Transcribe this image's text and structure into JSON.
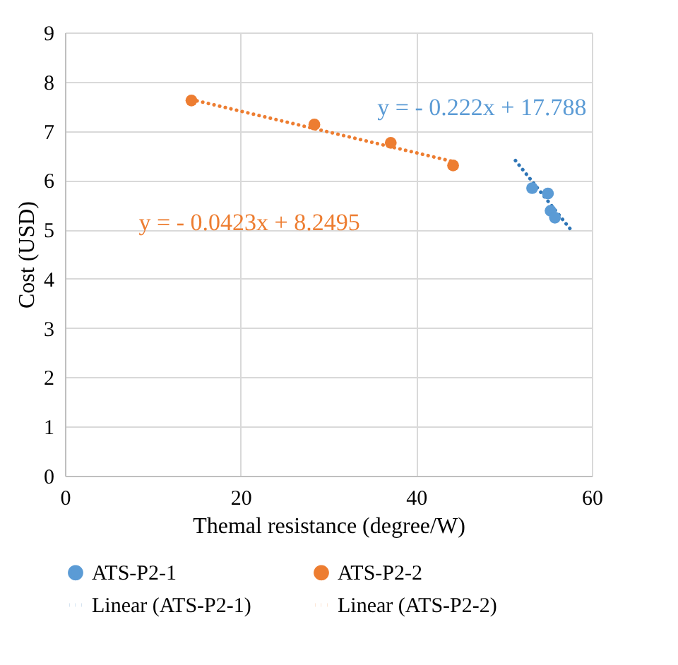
{
  "chart_data": {
    "type": "scatter",
    "xlabel": "Themal resistance (degree/W)",
    "ylabel": "Cost (USD)",
    "xlim": [
      0,
      60
    ],
    "xticks": [
      0,
      20,
      40,
      60
    ],
    "ylim": [
      0,
      9
    ],
    "yticks": [
      0,
      1,
      2,
      3,
      4,
      5,
      6,
      7,
      8,
      9
    ],
    "grid": true,
    "legend": "bottom",
    "marker": "circle",
    "series": [
      {
        "name": "ATS-P2-1",
        "color": "#5b9bd5",
        "x": [
          53.2,
          55.0,
          55.3,
          55.8
        ],
        "values": [
          5.84,
          5.73,
          5.38,
          5.24
        ]
      },
      {
        "name": "ATS-P2-2",
        "color": "#ed7d31",
        "x": [
          14.4,
          28.4,
          37.1,
          44.2
        ],
        "values": [
          7.62,
          7.13,
          6.76,
          6.3
        ]
      },
      {
        "name": "Linear (ATS-P2-1)",
        "type": "line",
        "line_style": "dotted",
        "marker": "none",
        "color": "#2e75b6",
        "x": [
          51.3,
          57.5
        ],
        "values": [
          6.4,
          5.02
        ]
      },
      {
        "name": "Linear (ATS-P2-2)",
        "type": "line",
        "line_style": "dotted",
        "marker": "none",
        "color": "#ed7d31",
        "x": [
          14.4,
          44.2
        ],
        "values": [
          7.64,
          6.38
        ]
      }
    ],
    "annotations": [
      "y = - 0.222x + 17.788",
      "y = -  0.0423x + 8.2495"
    ]
  }
}
